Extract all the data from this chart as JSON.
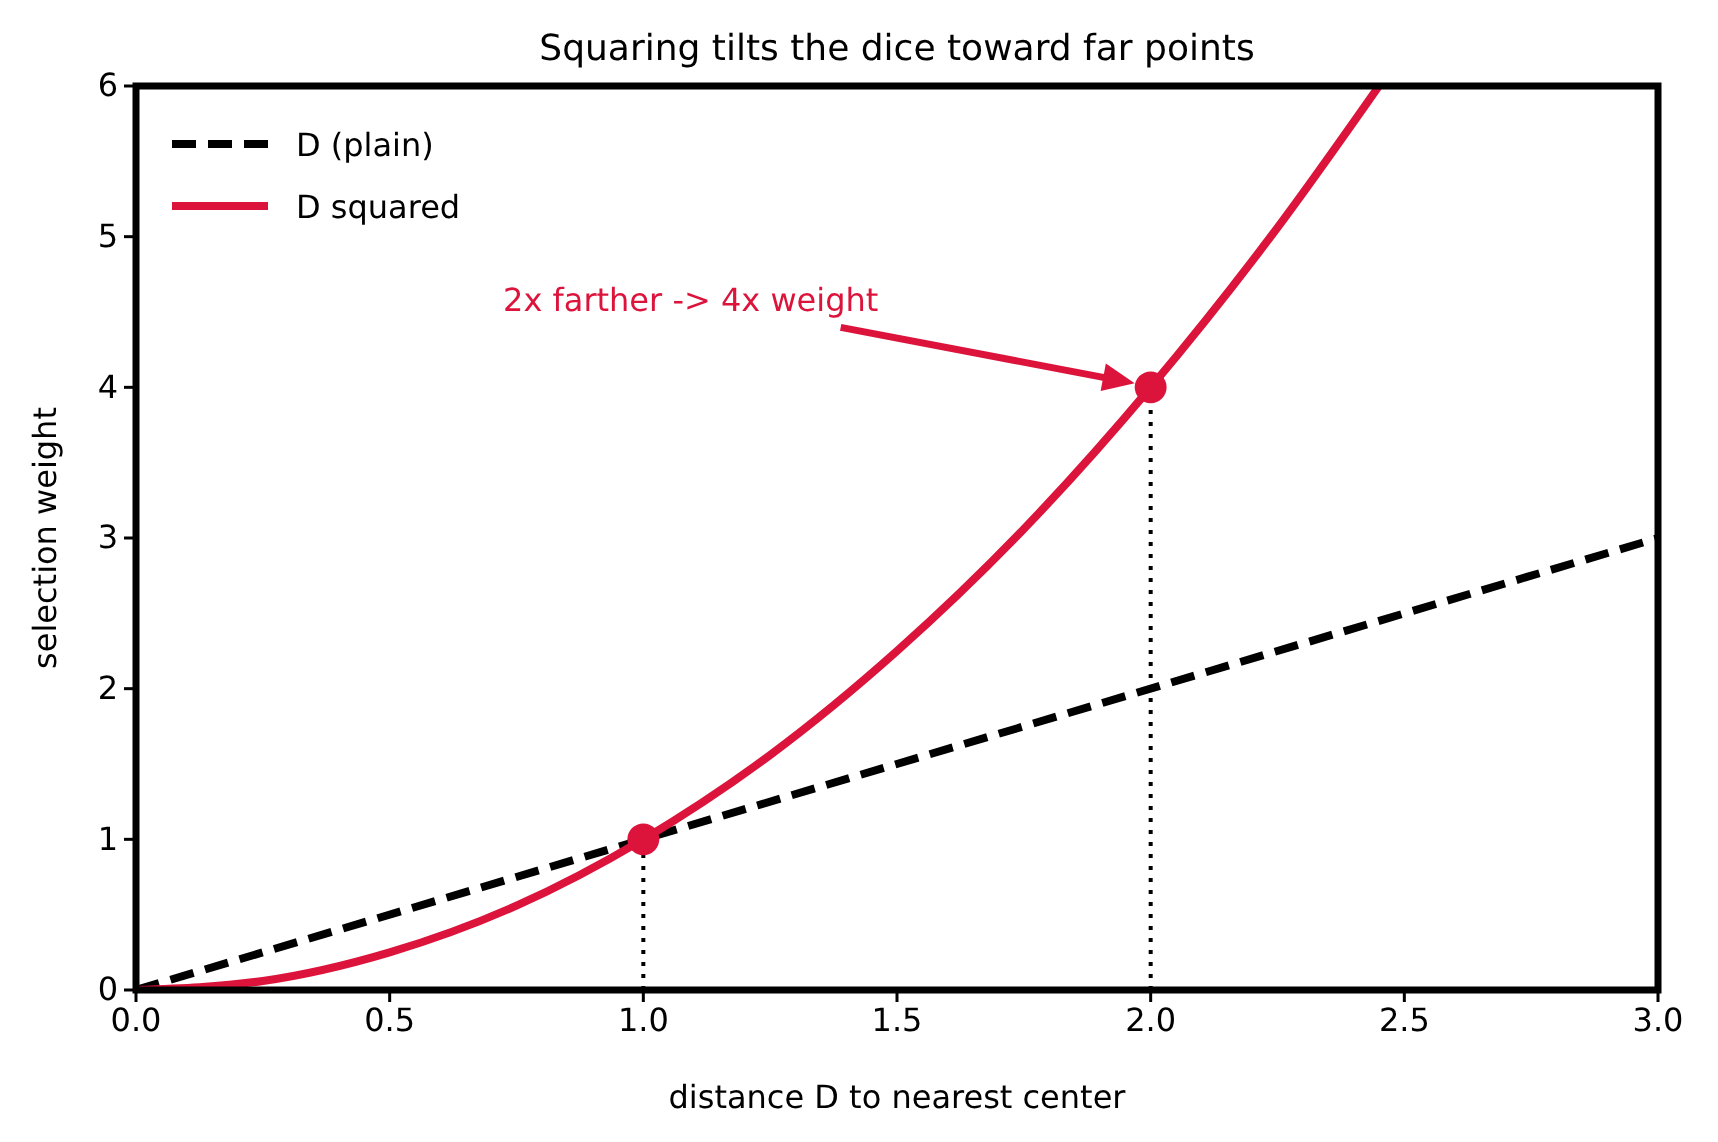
{
  "chart_data": {
    "type": "line",
    "title": "Squaring tilts the dice toward far points",
    "xlabel": "distance D to nearest center",
    "ylabel": "selection weight",
    "xlim": [
      0,
      3
    ],
    "ylim": [
      0,
      6
    ],
    "xticks": [
      {
        "value": 0,
        "label": "0.0"
      },
      {
        "value": 0.5,
        "label": "0.5"
      },
      {
        "value": 1,
        "label": "1.0"
      },
      {
        "value": 1.5,
        "label": "1.5"
      },
      {
        "value": 2,
        "label": "2.0"
      },
      {
        "value": 2.5,
        "label": "2.5"
      },
      {
        "value": 3,
        "label": "3.0"
      }
    ],
    "yticks": [
      0,
      1,
      2,
      3,
      4,
      5,
      6
    ],
    "grid": false,
    "legend": "top left",
    "series": [
      {
        "name": "D (plain)",
        "color": "#000000",
        "line_style": "dashed",
        "x": [
          0,
          3
        ],
        "values": [
          0,
          3
        ]
      },
      {
        "name": "D squared",
        "color": "#dc143c",
        "line_style": "solid",
        "x": [
          0,
          0.25,
          0.5,
          0.75,
          1,
          1.25,
          1.5,
          1.75,
          2,
          2.25,
          2.45
        ],
        "values": [
          0,
          0.06,
          0.25,
          0.56,
          1,
          1.56,
          2.25,
          3.06,
          4,
          5.06,
          6.0
        ]
      },
      {
        "type": "line",
        "color": "#000000",
        "line_style": "dotted",
        "x": [
          1,
          1
        ],
        "values": [
          0,
          1
        ]
      },
      {
        "type": "line",
        "color": "#000000",
        "line_style": "dotted",
        "x": [
          2,
          2
        ],
        "values": [
          0,
          4
        ]
      },
      {
        "type": "scatter",
        "color": "#dc143c",
        "marker": "circle",
        "x": [
          1,
          2
        ],
        "values": [
          1,
          4
        ]
      }
    ],
    "annotations": [
      "2x farther -> 4x weight"
    ]
  }
}
